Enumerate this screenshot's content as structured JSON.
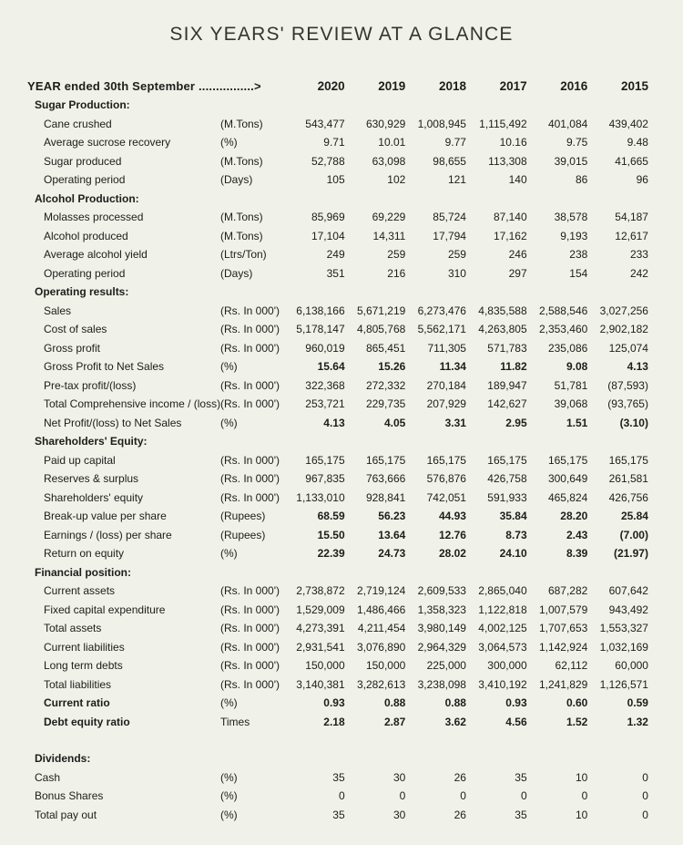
{
  "title": "SIX YEARS' REVIEW AT A GLANCE",
  "colors": {
    "background": "#f0f1e8",
    "ink": "#1d1d1b",
    "title_ink": "#35352f"
  },
  "header": {
    "label": "YEAR ended 30th September ................>",
    "years": [
      "2020",
      "2019",
      "2018",
      "2017",
      "2016",
      "2015"
    ]
  },
  "sections": [
    {
      "name": "Sugar Production:",
      "rows": [
        {
          "label": "Cane crushed",
          "unit": "(M.Tons)",
          "values": [
            "543,477",
            "630,929",
            "1,008,945",
            "1,115,492",
            "401,084",
            "439,402"
          ]
        },
        {
          "label": "Average sucrose recovery",
          "unit": "(%)",
          "values": [
            "9.71",
            "10.01",
            "9.77",
            "10.16",
            "9.75",
            "9.48"
          ]
        },
        {
          "label": "Sugar produced",
          "unit": "(M.Tons)",
          "values": [
            "52,788",
            "63,098",
            "98,655",
            "113,308",
            "39,015",
            "41,665"
          ]
        },
        {
          "label": "Operating period",
          "unit": "(Days)",
          "values": [
            "105",
            "102",
            "121",
            "140",
            "86",
            "96"
          ]
        }
      ]
    },
    {
      "name": "Alcohol Production:",
      "rows": [
        {
          "label": "Molasses processed",
          "unit": "(M.Tons)",
          "values": [
            "85,969",
            "69,229",
            "85,724",
            "87,140",
            "38,578",
            "54,187"
          ]
        },
        {
          "label": "Alcohol produced",
          "unit": "(M.Tons)",
          "values": [
            "17,104",
            "14,311",
            "17,794",
            "17,162",
            "9,193",
            "12,617"
          ]
        },
        {
          "label": "Average alcohol yield",
          "unit": "(Ltrs/Ton)",
          "values": [
            "249",
            "259",
            "259",
            "246",
            "238",
            "233"
          ]
        },
        {
          "label": "Operating period",
          "unit": "(Days)",
          "values": [
            "351",
            "216",
            "310",
            "297",
            "154",
            "242"
          ]
        }
      ]
    },
    {
      "name": "Operating results:",
      "rows": [
        {
          "label": "Sales",
          "unit": "(Rs. In 000')",
          "values": [
            "6,138,166",
            "5,671,219",
            "6,273,476",
            "4,835,588",
            "2,588,546",
            "3,027,256"
          ]
        },
        {
          "label": "Cost of sales",
          "unit": "(Rs. In 000')",
          "values": [
            "5,178,147",
            "4,805,768",
            "5,562,171",
            "4,263,805",
            "2,353,460",
            "2,902,182"
          ]
        },
        {
          "label": "Gross profit",
          "unit": "(Rs. In 000')",
          "values": [
            "960,019",
            "865,451",
            "711,305",
            "571,783",
            "235,086",
            "125,074"
          ]
        },
        {
          "label": "Gross Profit to Net Sales",
          "unit": "(%)",
          "bold_values": true,
          "values": [
            "15.64",
            "15.26",
            "11.34",
            "11.82",
            "9.08",
            "4.13"
          ]
        },
        {
          "label": "Pre-tax profit/(loss)",
          "unit": "(Rs. In 000')",
          "values": [
            "322,368",
            "272,332",
            "270,184",
            "189,947",
            "51,781",
            "(87,593)"
          ]
        },
        {
          "label": "Total Comprehensive income / (loss)",
          "unit": "(Rs. In 000')",
          "values": [
            "253,721",
            "229,735",
            "207,929",
            "142,627",
            "39,068",
            "(93,765)"
          ]
        },
        {
          "label": "Net Profit/(loss) to Net Sales",
          "unit": "(%)",
          "bold_values": true,
          "values": [
            "4.13",
            "4.05",
            "3.31",
            "2.95",
            "1.51",
            "(3.10)"
          ]
        }
      ]
    },
    {
      "name": "Shareholders' Equity:",
      "rows": [
        {
          "label": "Paid up capital",
          "unit": "(Rs. In 000')",
          "values": [
            "165,175",
            "165,175",
            "165,175",
            "165,175",
            "165,175",
            "165,175"
          ]
        },
        {
          "label": "Reserves & surplus",
          "unit": "(Rs. In 000')",
          "values": [
            "967,835",
            "763,666",
            "576,876",
            "426,758",
            "300,649",
            "261,581"
          ]
        },
        {
          "label": "Shareholders' equity",
          "unit": "(Rs. In 000')",
          "values": [
            "1,133,010",
            "928,841",
            "742,051",
            "591,933",
            "465,824",
            "426,756"
          ]
        },
        {
          "label": "Break-up value per share",
          "unit": "(Rupees)",
          "bold_values": true,
          "values": [
            "68.59",
            "56.23",
            "44.93",
            "35.84",
            "28.20",
            "25.84"
          ]
        },
        {
          "label": "Earnings / (loss) per share",
          "unit": "(Rupees)",
          "bold_values": true,
          "values": [
            "15.50",
            "13.64",
            "12.76",
            "8.73",
            "2.43",
            "(7.00)"
          ]
        },
        {
          "label": "Return on equity",
          "unit": "(%)",
          "bold_values": true,
          "values": [
            "22.39",
            "24.73",
            "28.02",
            "24.10",
            "8.39",
            "(21.97)"
          ]
        }
      ]
    },
    {
      "name": "Financial position:",
      "rows": [
        {
          "label": "Current assets",
          "unit": "(Rs. In 000')",
          "values": [
            "2,738,872",
            "2,719,124",
            "2,609,533",
            "2,865,040",
            "687,282",
            "607,642"
          ]
        },
        {
          "label": "Fixed capital expenditure",
          "unit": "(Rs. In 000')",
          "values": [
            "1,529,009",
            "1,486,466",
            "1,358,323",
            "1,122,818",
            "1,007,579",
            "943,492"
          ]
        },
        {
          "label": "Total assets",
          "unit": "(Rs. In 000')",
          "values": [
            "4,273,391",
            "4,211,454",
            "3,980,149",
            "4,002,125",
            "1,707,653",
            "1,553,327"
          ]
        },
        {
          "label": "Current liabilities",
          "unit": "(Rs. In 000')",
          "values": [
            "2,931,541",
            "3,076,890",
            "2,964,329",
            "3,064,573",
            "1,142,924",
            "1,032,169"
          ]
        },
        {
          "label": "Long term debts",
          "unit": "(Rs. In 000')",
          "values": [
            "150,000",
            "150,000",
            "225,000",
            "300,000",
            "62,112",
            "60,000"
          ]
        },
        {
          "label": "Total liabilities",
          "unit": "(Rs. In 000')",
          "values": [
            "3,140,381",
            "3,282,613",
            "3,238,098",
            "3,410,192",
            "1,241,829",
            "1,126,571"
          ]
        },
        {
          "label": "Current ratio",
          "unit": "(%)",
          "bold_label": true,
          "bold_values": true,
          "values": [
            "0.93",
            "0.88",
            "0.88",
            "0.93",
            "0.60",
            "0.59"
          ]
        },
        {
          "label": "Debt equity ratio",
          "unit": "Times",
          "bold_label": true,
          "bold_values": true,
          "values": [
            "2.18",
            "2.87",
            "3.62",
            "4.56",
            "1.52",
            "1.32"
          ]
        }
      ]
    },
    {
      "name": "Dividends:",
      "gap_before": true,
      "indent": false,
      "rows": [
        {
          "label": "Cash",
          "unit": "(%)",
          "values": [
            "35",
            "30",
            "26",
            "35",
            "10",
            "0"
          ]
        },
        {
          "label": "Bonus Shares",
          "unit": "(%)",
          "values": [
            "0",
            "0",
            "0",
            "0",
            "0",
            "0"
          ]
        },
        {
          "label": "Total pay out",
          "unit": "(%)",
          "values": [
            "35",
            "30",
            "26",
            "35",
            "10",
            "0"
          ]
        }
      ]
    }
  ]
}
